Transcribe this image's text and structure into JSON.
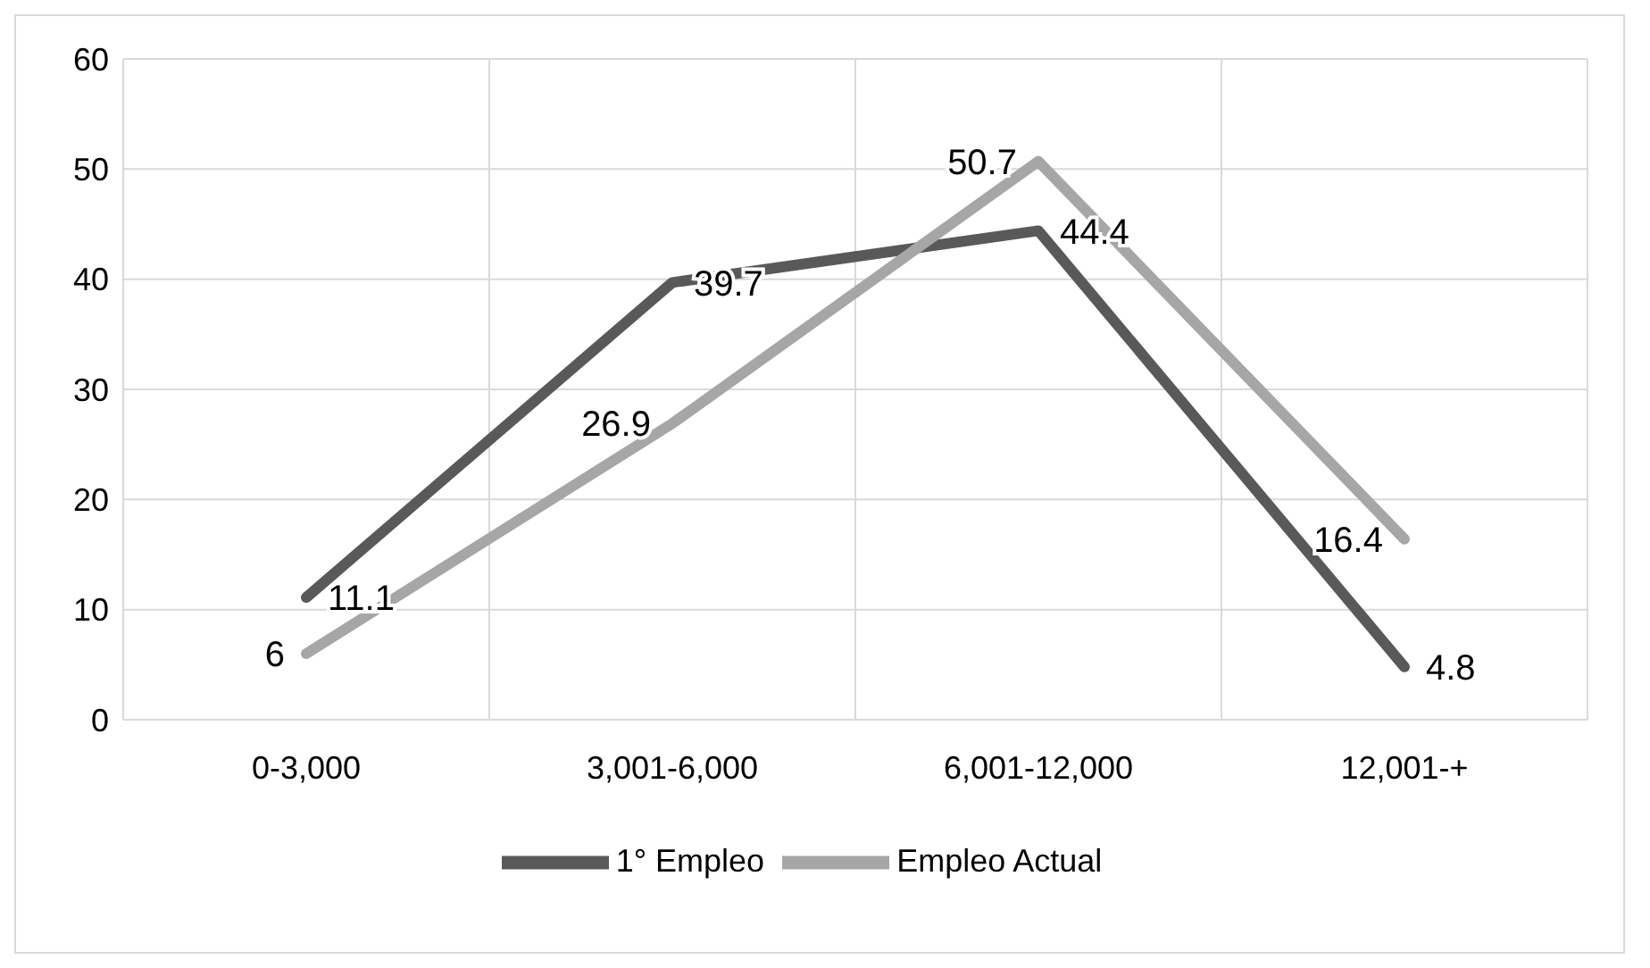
{
  "chart_data": {
    "type": "line",
    "categories": [
      "0-3,000",
      "3,001-6,000",
      "6,001-12,000",
      "12,001-+"
    ],
    "series": [
      {
        "name": "1° Empleo",
        "color": "#595959",
        "values": [
          11.1,
          39.7,
          44.4,
          4.8
        ]
      },
      {
        "name": "Empleo Actual",
        "color": "#a6a6a6",
        "values": [
          6,
          26.9,
          50.7,
          16.4
        ]
      }
    ],
    "ylim": [
      0,
      60
    ],
    "yticks": [
      0,
      10,
      20,
      30,
      40,
      50,
      60
    ],
    "grid": true,
    "legend": "bottom",
    "data_labels": true,
    "marker": "none",
    "line_style": "solid"
  }
}
